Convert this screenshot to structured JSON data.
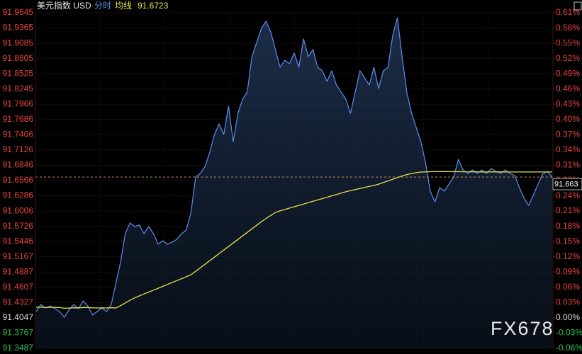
{
  "chart_data": {
    "type": "line",
    "title": "美元指数 USD",
    "average_value": 91.6723,
    "last_price": 91.663,
    "watermark": "FX678",
    "grid": true,
    "ylim": [
      91.3487,
      91.9645
    ],
    "yticks": [
      91.9645,
      91.9365,
      91.9085,
      91.8805,
      91.8525,
      91.8245,
      91.7966,
      91.7686,
      91.7406,
      91.7126,
      91.6846,
      91.6566,
      91.6286,
      91.6006,
      91.5726,
      91.5446,
      91.5167,
      91.4887,
      91.4607,
      91.4327,
      91.4047,
      91.3767,
      91.3487
    ],
    "y2lim": [
      -0.0613,
      0.6125
    ],
    "y2ticks": [
      {
        "value": 0.6125,
        "label": "0.61%"
      },
      {
        "value": 0.5818,
        "label": "0.58%"
      },
      {
        "value": 0.5512,
        "label": "0.55%"
      },
      {
        "value": 0.5206,
        "label": "0.52%"
      },
      {
        "value": 0.4899,
        "label": "0.49%"
      },
      {
        "value": 0.4593,
        "label": "0.46%"
      },
      {
        "value": 0.4288,
        "label": "0.43%"
      },
      {
        "value": 0.3981,
        "label": "0.40%"
      },
      {
        "value": 0.3675,
        "label": "0.37%"
      },
      {
        "value": 0.3369,
        "label": "0.34%"
      },
      {
        "value": 0.3063,
        "label": "0.31%"
      },
      {
        "value": 0.2757,
        "label": "0.28%"
      },
      {
        "value": 0.2449,
        "label": "0.24%"
      },
      {
        "value": 0.2144,
        "label": "0.21%"
      },
      {
        "value": 0.1838,
        "label": "0.18%"
      },
      {
        "value": 0.1532,
        "label": "0.15%"
      },
      {
        "value": 0.1226,
        "label": "0.12%"
      },
      {
        "value": 0.0919,
        "label": "0.09%"
      },
      {
        "value": 0.0613,
        "label": "0.06%"
      },
      {
        "value": 0.0306,
        "label": "0.03%"
      },
      {
        "value": 0,
        "label": "0.00%"
      },
      {
        "value": -0.0306,
        "label": "-0.03%"
      },
      {
        "value": -0.0613,
        "label": "-0.06%"
      }
    ],
    "series": [
      {
        "name": "分时",
        "color": "#5b8def",
        "values": [
          91.4163,
          91.4292,
          91.4227,
          91.4266,
          91.4214,
          91.4163,
          91.4059,
          91.4188,
          91.4292,
          91.4214,
          91.4357,
          91.4266,
          91.4098,
          91.4163,
          91.4227,
          91.4163,
          91.4292,
          91.4682,
          91.5072,
          91.5592,
          91.5786,
          91.5722,
          91.5747,
          91.5592,
          91.5722,
          91.5592,
          91.5397,
          91.5462,
          91.5397,
          91.5436,
          91.5488,
          91.5592,
          91.5657,
          91.5981,
          91.6631,
          91.6696,
          91.6826,
          91.7086,
          91.7411,
          91.7605,
          91.7411,
          91.793,
          91.7281,
          91.78,
          91.806,
          91.819,
          91.884,
          91.9099,
          91.9359,
          91.9489,
          91.9294,
          91.897,
          91.8645,
          91.8775,
          91.871,
          91.8905,
          91.8645,
          91.9164,
          91.884,
          91.897,
          91.8645,
          91.858,
          91.8385,
          91.858,
          91.832,
          91.819,
          91.806,
          91.78,
          91.819,
          91.858,
          91.845,
          91.832,
          91.8645,
          91.8255,
          91.858,
          91.8645,
          91.9229,
          91.9554,
          91.884,
          91.819,
          91.78,
          91.754,
          91.7281,
          91.6891,
          91.6371,
          91.6176,
          91.6436,
          91.6371,
          91.6501,
          91.6631,
          91.6956,
          91.6761,
          91.6696,
          91.6761,
          91.6696,
          91.6761,
          91.6696,
          91.6787,
          91.6735,
          91.6696,
          91.6761,
          91.6696,
          91.6657,
          91.6436,
          91.6241,
          91.6111,
          91.6306,
          91.6501,
          91.6696,
          91.6735,
          91.6631
        ]
      },
      {
        "name": "均线",
        "color": "#e8e04a",
        "values": [
          91.424,
          91.4245,
          91.4235,
          91.424,
          91.4238,
          91.4235,
          91.4222,
          91.4225,
          91.4232,
          91.423,
          91.4236,
          91.4237,
          91.423,
          91.4228,
          91.423,
          91.4228,
          91.4232,
          91.4227,
          91.427,
          91.432,
          91.437,
          91.4412,
          91.445,
          91.4485,
          91.452,
          91.4555,
          91.459,
          91.4625,
          91.466,
          91.4695,
          91.473,
          91.4765,
          91.48,
          91.4838,
          91.49,
          91.4965,
          91.503,
          91.5095,
          91.516,
          91.5225,
          91.529,
          91.5355,
          91.542,
          91.5485,
          91.555,
          91.5615,
          91.568,
          91.5745,
          91.581,
          91.587,
          91.5925,
          91.5981,
          91.601,
          91.6035,
          91.606,
          91.6085,
          91.611,
          91.6135,
          91.616,
          91.6185,
          91.621,
          91.6235,
          91.626,
          91.6285,
          91.631,
          91.6335,
          91.636,
          91.638,
          91.64,
          91.642,
          91.644,
          91.6458,
          91.6475,
          91.65,
          91.653,
          91.656,
          91.659,
          91.662,
          91.665,
          91.6675,
          91.6695,
          91.671,
          91.6722,
          91.6725,
          91.6728,
          91.673,
          91.673,
          91.6731,
          91.673,
          91.6729,
          91.6728,
          91.6727,
          91.6727,
          91.6726,
          91.6726,
          91.6725,
          91.6725,
          91.6724,
          91.6724,
          91.6724,
          91.6723,
          91.6723,
          91.6723,
          91.6723,
          91.6723,
          91.6723,
          91.6723,
          91.6723,
          91.6723,
          91.6723,
          91.6723
        ]
      }
    ]
  }
}
